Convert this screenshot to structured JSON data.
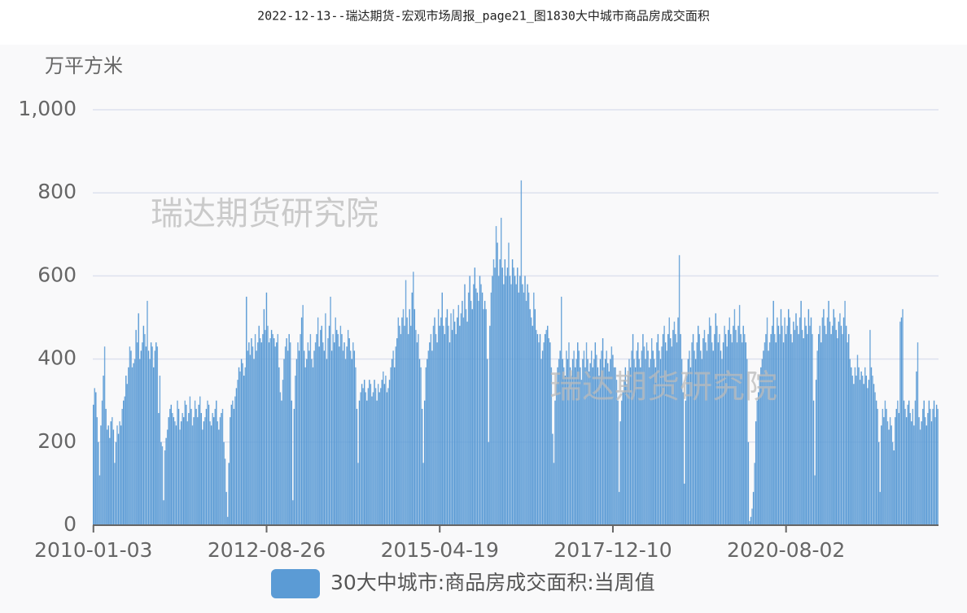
{
  "chart_data": {
    "type": "bar",
    "title": "2022-12-13--瑞达期货-宏观市场周报_page21_图1830大中城市商品房成交面积",
    "y_label": "万平方米",
    "watermarks": [
      "瑞达期货研究院",
      "瑞达期货研究院"
    ],
    "ylim": [
      0,
      1000
    ],
    "yticks": [
      0,
      200,
      400,
      600,
      800,
      {
        "value": 1000,
        "label": "1,000"
      }
    ],
    "grid": true,
    "legend": "bottom",
    "categories": [
      "2010-01-03",
      null,
      null,
      null,
      null,
      null,
      null,
      null,
      null,
      null,
      null,
      null,
      null,
      null,
      null,
      null,
      null,
      null,
      null,
      null,
      null,
      null,
      null,
      null,
      null,
      null,
      null,
      null,
      null,
      null,
      null,
      null,
      null,
      null,
      null,
      null,
      null,
      null,
      null,
      null,
      null,
      null,
      null,
      null,
      null,
      null,
      null,
      null,
      null,
      null,
      null,
      null,
      null,
      null,
      null,
      null,
      null,
      null,
      null,
      null,
      null,
      null,
      null,
      null,
      null,
      null,
      null,
      null,
      null,
      null,
      null,
      null,
      null,
      null,
      null,
      null,
      null,
      null,
      null,
      null,
      null,
      null,
      null,
      null,
      null,
      null,
      null,
      null,
      null,
      null,
      null,
      null,
      null,
      null,
      null,
      null,
      null,
      null,
      null,
      null,
      null,
      null,
      null,
      null,
      null,
      null,
      null,
      null,
      null,
      null,
      null,
      null,
      null,
      null,
      null,
      null,
      null,
      null,
      null,
      null,
      null,
      null,
      null,
      null,
      null,
      null,
      null,
      null,
      null,
      null,
      null,
      null,
      null,
      null,
      null,
      null,
      null,
      null,
      "2012-08-26",
      null,
      null,
      null,
      null,
      null,
      null,
      null,
      null,
      null,
      null,
      null,
      null,
      null,
      null,
      null,
      null,
      null,
      null,
      null,
      null,
      null,
      null,
      null,
      null,
      null,
      null,
      null,
      null,
      null,
      null,
      null,
      null,
      null,
      null,
      null,
      null,
      null,
      null,
      null,
      null,
      null,
      null,
      null,
      null,
      null,
      null,
      null,
      null,
      null,
      null,
      null,
      null,
      null,
      null,
      null,
      null,
      null,
      null,
      null,
      null,
      null,
      null,
      null,
      null,
      null,
      null,
      null,
      null,
      null,
      null,
      null,
      null,
      null,
      null,
      null,
      null,
      null,
      null,
      null,
      null,
      null,
      null,
      null,
      null,
      null,
      null,
      null,
      null,
      null,
      null,
      null,
      null,
      null,
      null,
      null,
      null,
      null,
      null,
      null,
      null,
      null,
      null,
      null,
      null,
      null,
      null,
      null,
      null,
      null,
      null,
      null,
      null,
      null,
      null,
      null,
      null,
      null,
      null,
      null,
      null,
      null,
      null,
      null,
      null,
      null,
      null,
      null,
      null,
      null,
      null,
      null,
      null,
      null,
      null,
      null,
      null,
      null,
      "2015-04-19",
      null,
      null,
      null,
      null,
      null,
      null,
      null,
      null,
      null,
      null,
      null,
      null,
      null,
      null,
      null,
      null,
      null,
      null,
      null,
      null,
      null,
      null,
      null,
      null,
      null,
      null,
      null,
      null,
      null,
      null,
      null,
      null,
      null,
      null,
      null,
      null,
      null,
      null,
      null,
      null,
      null,
      null,
      null,
      null,
      null,
      null,
      null,
      null,
      null,
      null,
      null,
      null,
      null,
      null,
      null,
      null,
      null,
      null,
      null,
      null,
      null,
      null,
      null,
      null,
      null,
      null,
      null,
      null,
      null,
      null,
      null,
      null,
      null,
      null,
      null,
      null,
      null,
      null,
      null,
      null,
      null,
      null,
      null,
      null,
      null,
      null,
      null,
      null,
      null,
      null,
      null,
      null,
      null,
      null,
      null,
      null,
      null,
      null,
      null,
      null,
      null,
      null,
      null,
      null,
      null,
      null,
      null,
      null,
      null,
      null,
      null,
      null,
      null,
      null,
      null,
      null,
      null,
      null,
      null,
      null,
      null,
      null,
      null,
      null,
      null,
      null,
      null,
      null,
      null,
      null,
      null,
      null,
      null,
      null,
      null,
      null,
      null,
      "2017-12-10",
      null,
      null,
      null,
      null,
      null,
      null,
      null,
      null,
      null,
      null,
      null,
      null,
      null,
      null,
      null,
      null,
      null,
      null,
      null,
      null,
      null,
      null,
      null,
      null,
      null,
      null,
      null,
      null,
      null,
      null,
      null,
      null,
      null,
      null,
      null,
      null,
      null,
      null,
      null,
      null,
      null,
      null,
      null,
      null,
      null,
      null,
      null,
      null,
      null,
      null,
      null,
      null,
      null,
      null,
      null,
      null,
      null,
      null,
      null,
      null,
      null,
      null,
      null,
      null,
      null,
      null,
      null,
      null,
      null,
      null,
      null,
      null,
      null,
      null,
      null,
      null,
      null,
      null,
      null,
      null,
      null,
      null,
      null,
      null,
      null,
      null,
      null,
      null,
      null,
      null,
      null,
      null,
      null,
      null,
      null,
      null,
      null,
      null,
      null,
      null,
      null,
      null,
      null,
      null,
      null,
      null,
      null,
      null,
      null,
      null,
      null,
      null,
      null,
      null,
      null,
      null,
      null,
      null,
      null,
      null,
      null,
      null,
      null,
      null,
      null,
      null,
      null,
      null,
      null,
      null,
      null,
      null,
      null,
      null,
      null,
      null,
      null,
      "2020-08-02",
      null,
      null,
      null,
      null,
      null,
      null,
      null,
      null,
      null,
      null,
      null,
      null,
      null,
      null,
      null,
      null,
      null,
      null,
      null,
      null,
      null,
      null,
      null,
      null,
      null,
      null,
      null,
      null,
      null,
      null,
      null,
      null,
      null,
      null,
      null,
      null,
      null,
      null,
      null,
      null,
      null,
      null,
      null,
      null,
      null,
      null,
      null,
      null,
      null,
      null,
      null,
      null,
      null,
      null,
      null,
      null,
      null,
      null,
      null,
      null,
      null,
      null,
      null,
      null,
      null,
      null,
      null,
      null,
      null,
      null,
      null,
      null,
      null,
      null,
      null,
      null,
      null,
      null,
      null,
      null,
      null,
      null,
      null,
      null,
      null,
      null,
      null,
      null,
      null,
      null,
      null,
      null,
      null,
      null,
      null,
      null,
      null,
      null,
      null,
      null,
      null,
      null,
      null,
      null,
      null,
      null,
      null,
      null,
      null,
      null,
      null,
      null,
      null,
      null,
      null,
      null,
      null,
      null,
      null,
      null,
      null
    ],
    "series": [
      {
        "name": "30大中城市:商品房成交面积:当周值",
        "color": "#5b9bd5",
        "values": [
          290,
          330,
          320,
          260,
          200,
          120,
          240,
          300,
          360,
          430,
          280,
          230,
          240,
          210,
          250,
          260,
          230,
          150,
          200,
          240,
          220,
          250,
          240,
          280,
          300,
          310,
          360,
          340,
          380,
          430,
          420,
          380,
          390,
          400,
          470,
          440,
          510,
          400,
          420,
          440,
          480,
          460,
          430,
          540,
          420,
          400,
          440,
          430,
          380,
          420,
          440,
          430,
          270,
          360,
          200,
          190,
          60,
          180,
          210,
          230,
          260,
          280,
          290,
          270,
          260,
          250,
          240,
          300,
          280,
          230,
          250,
          270,
          260,
          300,
          290,
          250,
          270,
          310,
          280,
          240,
          260,
          300,
          280,
          260,
          290,
          310,
          270,
          230,
          250,
          260,
          280,
          300,
          290,
          250,
          240,
          270,
          260,
          280,
          300,
          250,
          230,
          260,
          270,
          280,
          200,
          160,
          80,
          20,
          150,
          260,
          290,
          300,
          280,
          310,
          330,
          350,
          380,
          370,
          400,
          390,
          360,
          380,
          550,
          420,
          440,
          410,
          450,
          430,
          400,
          460,
          420,
          440,
          480,
          450,
          440,
          460,
          520,
          470,
          560,
          480,
          440,
          450,
          470,
          460,
          450,
          430,
          440,
          460,
          380,
          320,
          300,
          350,
          400,
          430,
          450,
          420,
          460,
          440,
          300,
          60,
          280,
          360,
          400,
          440,
          420,
          460,
          500,
          530,
          420,
          380,
          400,
          440,
          420,
          460,
          400,
          380,
          420,
          440,
          460,
          500,
          430,
          470,
          480,
          440,
          420,
          510,
          400,
          450,
          480,
          550,
          420,
          460,
          440,
          500,
          470,
          460,
          430,
          480,
          460,
          420,
          440,
          400,
          430,
          470,
          450,
          420,
          400,
          440,
          420,
          380,
          280,
          150,
          300,
          320,
          340,
          330,
          350,
          320,
          300,
          330,
          350,
          340,
          310,
          320,
          350,
          330,
          300,
          340,
          320,
          330,
          350,
          370,
          340,
          360,
          320,
          330,
          350,
          380,
          400,
          420,
          380,
          430,
          450,
          500,
          480,
          460,
          500,
          520,
          480,
          590,
          500,
          460,
          520,
          480,
          560,
          610,
          520,
          470,
          440,
          460,
          400,
          380,
          280,
          150,
          300,
          380,
          400,
          420,
          440,
          460,
          420,
          480,
          500,
          460,
          440,
          520,
          480,
          500,
          560,
          480,
          460,
          500,
          520,
          480,
          440,
          510,
          470,
          520,
          490,
          460,
          500,
          530,
          480,
          510,
          540,
          500,
          580,
          520,
          490,
          560,
          600,
          540,
          520,
          580,
          620,
          570,
          560,
          540,
          600,
          580,
          560,
          520,
          540,
          520,
          400,
          200,
          480,
          560,
          600,
          640,
          620,
          720,
          680,
          600,
          640,
          740,
          620,
          580,
          640,
          600,
          620,
          680,
          600,
          580,
          640,
          620,
          600,
          580,
          620,
          560,
          600,
          830,
          580,
          560,
          600,
          540,
          580,
          560,
          520,
          500,
          480,
          560,
          520,
          470,
          460,
          440,
          460,
          400,
          420,
          440,
          460,
          470,
          480,
          450,
          440,
          380,
          220,
          150,
          300,
          340,
          380,
          400,
          420,
          550,
          400,
          380,
          360,
          420,
          400,
          440,
          380,
          360,
          400,
          420,
          380,
          400,
          440,
          420,
          380,
          350,
          400,
          420,
          380,
          440,
          400,
          370,
          390,
          420,
          380,
          400,
          440,
          410,
          380,
          360,
          400,
          420,
          450,
          380,
          400,
          420,
          390,
          370,
          400,
          430,
          410,
          380,
          380,
          350,
          300,
          80,
          250,
          300,
          320,
          350,
          380,
          340,
          360,
          400,
          380,
          420,
          460,
          400,
          380,
          420,
          440,
          400,
          380,
          420,
          460,
          430,
          400,
          440,
          420,
          380,
          400,
          450,
          420,
          400,
          380,
          440,
          460,
          420,
          400,
          430,
          460,
          480,
          440,
          420,
          460,
          500,
          450,
          430,
          470,
          490,
          460,
          440,
          500,
          650,
          460,
          400,
          320,
          100,
          300,
          360,
          400,
          420,
          380,
          440,
          460,
          420,
          400,
          440,
          480,
          460,
          420,
          400,
          450,
          470,
          440,
          420,
          460,
          500,
          480,
          440,
          420,
          460,
          510,
          480,
          440,
          460,
          420,
          400,
          440,
          480,
          460,
          430,
          470,
          500,
          460,
          440,
          480,
          520,
          470,
          440,
          480,
          530,
          460,
          440,
          480,
          460,
          440,
          400,
          200,
          10,
          20,
          40,
          80,
          150,
          250,
          300,
          320,
          360,
          380,
          400,
          420,
          440,
          460,
          500,
          420,
          440,
          460,
          480,
          540,
          460,
          440,
          500,
          480,
          460,
          520,
          480,
          440,
          500,
          460,
          480,
          520,
          500,
          460,
          440,
          490,
          470,
          510,
          480,
          460,
          500,
          540,
          470,
          450,
          500,
          480,
          460,
          520,
          480,
          500,
          460,
          300,
          120,
          350,
          420,
          460,
          480,
          440,
          500,
          520,
          480,
          460,
          500,
          540,
          490,
          460,
          480,
          520,
          500,
          470,
          450,
          490,
          510,
          480,
          460,
          500,
          540,
          480,
          440,
          460,
          400,
          380,
          360,
          340,
          380,
          360,
          410,
          380,
          350,
          370,
          360,
          340,
          380,
          360,
          330,
          350,
          470,
          380,
          360,
          340,
          320,
          300,
          280,
          200,
          80,
          240,
          280,
          260,
          300,
          280,
          250,
          230,
          260,
          240,
          200,
          180,
          260,
          280,
          300,
          270,
          490,
          500,
          520,
          300,
          280,
          260,
          290,
          300,
          270,
          250,
          280,
          240,
          300,
          370,
          440,
          260,
          230,
          250,
          280,
          300,
          260,
          240,
          270,
          300,
          280,
          250,
          280,
          300,
          260,
          290,
          280
        ]
      }
    ]
  }
}
